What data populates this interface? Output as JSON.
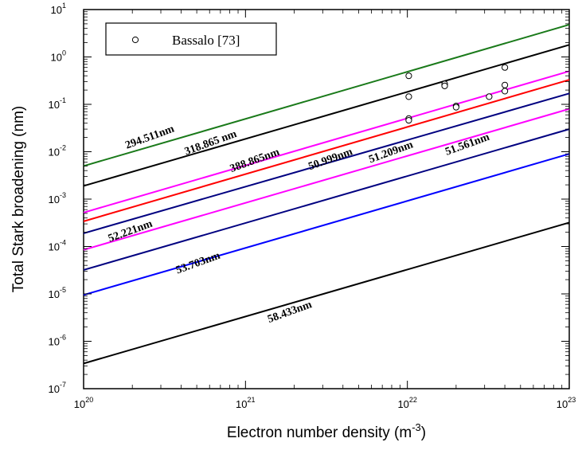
{
  "chart_data": {
    "type": "line",
    "xscale": "log",
    "yscale": "log",
    "xlim": [
      1e+20,
      1e+23
    ],
    "ylim": [
      1e-07,
      10
    ],
    "xlabel": "Electron number density (m",
    "xlabel_sup": "-3",
    "xlabel_close": ")",
    "ylabel": "Total Stark broadening (nm)",
    "x_ticks": [
      {
        "base": "10",
        "exp": "20",
        "value": 1e+20
      },
      {
        "base": "10",
        "exp": "21",
        "value": 1e+21
      },
      {
        "base": "10",
        "exp": "22",
        "value": 1e+22
      },
      {
        "base": "10",
        "exp": "23",
        "value": 1e+23
      }
    ],
    "y_ticks": [
      {
        "base": "10",
        "exp": "-7",
        "value": 1e-07
      },
      {
        "base": "10",
        "exp": "-6",
        "value": 1e-06
      },
      {
        "base": "10",
        "exp": "-5",
        "value": 1e-05
      },
      {
        "base": "10",
        "exp": "-4",
        "value": 0.0001
      },
      {
        "base": "10",
        "exp": "-3",
        "value": 0.001
      },
      {
        "base": "10",
        "exp": "-2",
        "value": 0.01
      },
      {
        "base": "10",
        "exp": "-1",
        "value": 0.1
      },
      {
        "base": "10",
        "exp": "0",
        "value": 1
      },
      {
        "base": "10",
        "exp": "1",
        "value": 10
      }
    ],
    "series": [
      {
        "name": "294.511nm",
        "color": "#1a7a1a",
        "x": [
          1e+20,
          1e+23
        ],
        "y": [
          0.005,
          4.8
        ]
      },
      {
        "name": "318.865 nm",
        "color": "#000000",
        "x": [
          1e+20,
          1e+23
        ],
        "y": [
          0.0019,
          1.8
        ]
      },
      {
        "name": "388.865nm",
        "color": "#ff00ff",
        "x": [
          1e+20,
          1e+23
        ],
        "y": [
          0.00052,
          0.5
        ]
      },
      {
        "name": "50.999nm",
        "color": "#ff0000",
        "x": [
          1e+20,
          1e+23
        ],
        "y": [
          0.00034,
          0.33
        ]
      },
      {
        "name": "51.209nm",
        "color": "#000080",
        "x": [
          1e+20,
          1e+23
        ],
        "y": [
          0.00019,
          0.17
        ]
      },
      {
        "name": "51.561nm",
        "color": "#ff00ff",
        "x": [
          1e+20,
          1e+23
        ],
        "y": [
          8.5e-05,
          0.08
        ]
      },
      {
        "name": "52.221nm",
        "color": "#000080",
        "x": [
          1e+20,
          1e+23
        ],
        "y": [
          3.2e-05,
          0.03
        ]
      },
      {
        "name": "53.703nm",
        "color": "#0000ff",
        "x": [
          1e+20,
          1e+23
        ],
        "y": [
          9.5e-06,
          0.009
        ]
      },
      {
        "name": "58.433nm",
        "color": "#000000",
        "x": [
          1e+20,
          1e+23
        ],
        "y": [
          3.4e-07,
          0.00032
        ]
      }
    ],
    "line_labels": [
      {
        "text": "294.511nm",
        "x": 1.85e+20,
        "y": 0.0115,
        "angle": -20
      },
      {
        "text": "318.865 nm",
        "x": 4.3e+20,
        "y": 0.0085,
        "angle": -20
      },
      {
        "text": "388.865nm",
        "x": 8.2e+20,
        "y": 0.0037,
        "angle": -20
      },
      {
        "text": "50.999nm",
        "x": 2.5e+21,
        "y": 0.0041,
        "angle": -20
      },
      {
        "text": "51.209nm",
        "x": 5.9e+21,
        "y": 0.0058,
        "angle": -20
      },
      {
        "text": "51.561nm",
        "x": 1.75e+22,
        "y": 0.0084,
        "angle": -20
      },
      {
        "text": "52.221nm",
        "x": 1.45e+20,
        "y": 0.000124,
        "angle": -20
      },
      {
        "text": "53.703nm",
        "x": 3.8e+20,
        "y": 2.65e-05,
        "angle": -20
      },
      {
        "text": "58.433nm",
        "x": 1.4e+21,
        "y": 2.45e-06,
        "angle": -20
      }
    ],
    "scatter": {
      "name": "Bassalo [73]",
      "marker": "open-circle",
      "points": [
        {
          "x": 1.02e+22,
          "y": 0.4
        },
        {
          "x": 1.02e+22,
          "y": 0.145
        },
        {
          "x": 1.02e+22,
          "y": 0.05
        },
        {
          "x": 1.02e+22,
          "y": 0.046
        },
        {
          "x": 1.7e+22,
          "y": 0.27
        },
        {
          "x": 1.7e+22,
          "y": 0.245
        },
        {
          "x": 2e+22,
          "y": 0.092
        },
        {
          "x": 2e+22,
          "y": 0.087
        },
        {
          "x": 3.2e+22,
          "y": 0.145
        },
        {
          "x": 4e+22,
          "y": 0.6
        },
        {
          "x": 4e+22,
          "y": 0.255
        },
        {
          "x": 4e+22,
          "y": 0.19
        }
      ]
    },
    "legend": {
      "placement": "top-left",
      "entries": [
        "Bassalo [73]"
      ]
    },
    "grid": false
  }
}
